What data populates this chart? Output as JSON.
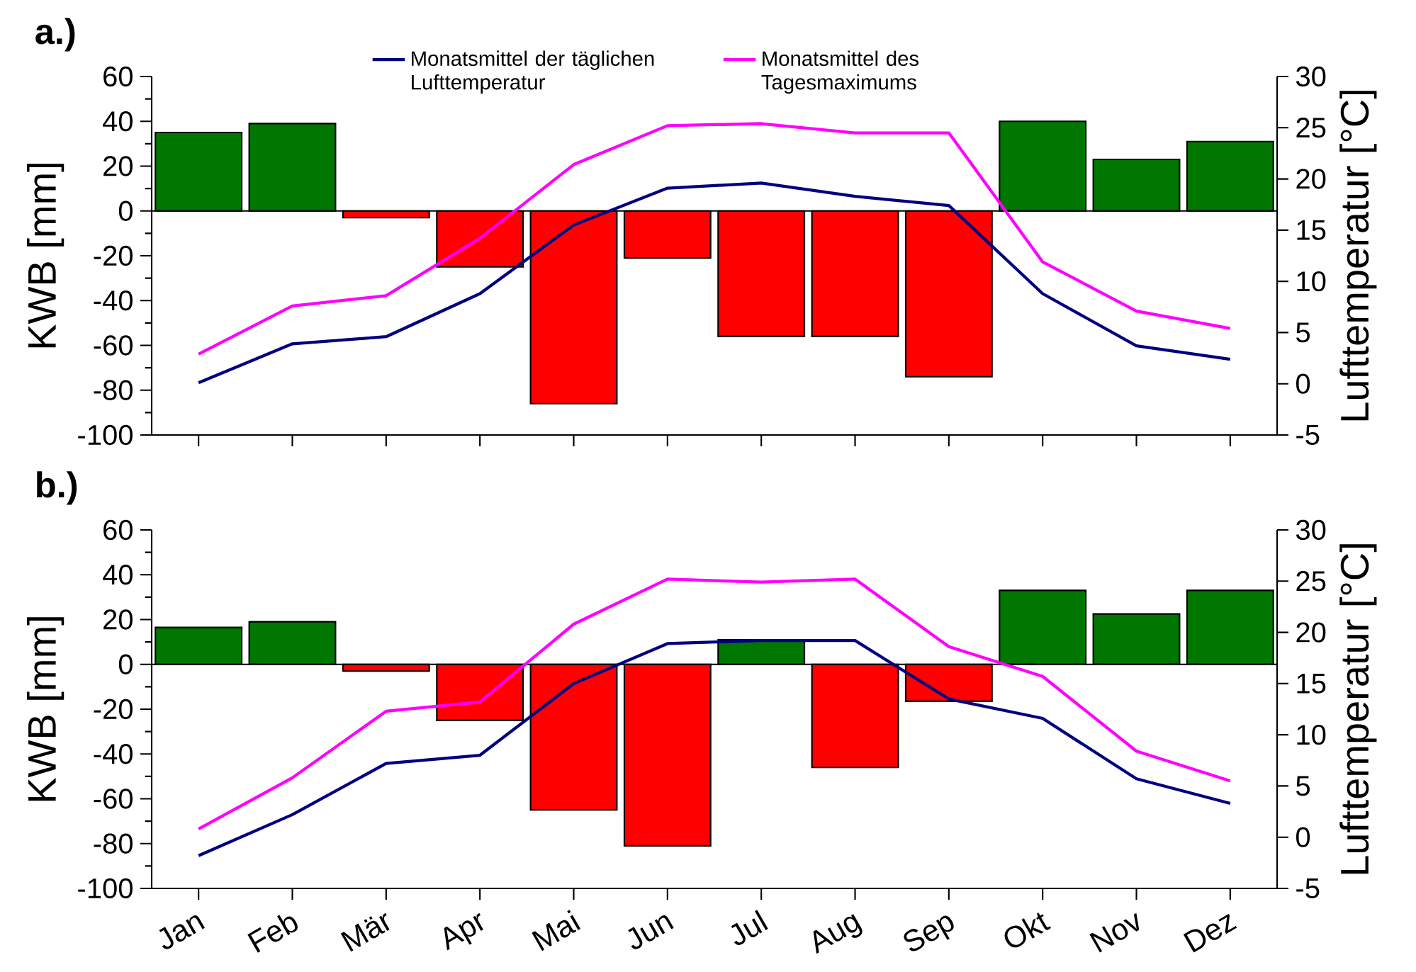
{
  "chart_data": [
    {
      "type": "bar",
      "title": "a.)",
      "categories": [
        null,
        null,
        null,
        null,
        null,
        null,
        null,
        null,
        null,
        null,
        null,
        null
      ],
      "ylabel": "KWB [mm]",
      "y2label": "Lufttemperatur [°C]",
      "ylim": [
        -100,
        60
      ],
      "yticks": [
        -100,
        -80,
        -60,
        -40,
        -20,
        0,
        20,
        40,
        60
      ],
      "y2lim": [
        -5,
        30
      ],
      "y2ticks": [
        -5,
        0,
        5,
        10,
        15,
        20,
        25,
        30
      ],
      "tick_labels": "y",
      "legend": "top",
      "ref_lines": [
        {
          "axis": "y",
          "value": 0,
          "color": "#000000"
        }
      ],
      "series": [
        {
          "type": "bar",
          "colors": [
            "#007700",
            "#007700",
            "#ff0000",
            "#ff0000",
            "#ff0000",
            "#ff0000",
            "#ff0000",
            "#ff0000",
            "#ff0000",
            "#007700",
            "#007700",
            "#007700"
          ],
          "values": [
            35,
            39,
            -3,
            -25,
            -86,
            -21,
            -56,
            -56,
            -74,
            40,
            23,
            31
          ]
        },
        {
          "type": "line",
          "axis": "y2",
          "name": "Monatsmittel der täglichen Lufttemperatur",
          "color": "#000080",
          "values": [
            0.1,
            3.9,
            4.6,
            8.8,
            15.5,
            19.1,
            19.6,
            18.3,
            17.4,
            8.8,
            3.7,
            2.4
          ]
        },
        {
          "type": "line",
          "axis": "y2",
          "name": "Monatsmittel des Tagesmaximums",
          "color": "#ff00ff",
          "values": [
            2.9,
            7.6,
            8.6,
            14.2,
            21.4,
            25.2,
            25.4,
            24.5,
            24.5,
            11.9,
            7.1,
            5.4
          ]
        }
      ]
    },
    {
      "type": "bar",
      "title": "b.)",
      "categories": [
        "Jan",
        "Feb",
        "Mär",
        "Apr",
        "Mai",
        "Jun",
        "Jul",
        "Aug",
        "Sep",
        "Okt",
        "Nov",
        "Dez"
      ],
      "ylabel": "KWB [mm]",
      "y2label": "Lufttemperatur [°C]",
      "ylim": [
        -100,
        60
      ],
      "yticks": [
        -100,
        -80,
        -60,
        -40,
        -20,
        0,
        20,
        40,
        60
      ],
      "y2lim": [
        -5,
        30
      ],
      "y2ticks": [
        -5,
        0,
        5,
        10,
        15,
        20,
        25,
        30
      ],
      "ref_lines": [
        {
          "axis": "y",
          "value": 0,
          "color": "#000000"
        }
      ],
      "series": [
        {
          "type": "bar",
          "colors": [
            "#007700",
            "#007700",
            "#ff0000",
            "#ff0000",
            "#ff0000",
            "#ff0000",
            "#007700",
            "#ff0000",
            "#ff0000",
            "#007700",
            "#007700",
            "#007700"
          ],
          "values": [
            16.5,
            19,
            -3,
            -25,
            -65,
            -81,
            11,
            -46,
            -16.5,
            33,
            22.5,
            33
          ]
        },
        {
          "type": "line",
          "axis": "y2",
          "color": "#000080",
          "values": [
            -1.8,
            2.2,
            7.2,
            8.0,
            15,
            18.9,
            19.2,
            19.2,
            13.5,
            11.6,
            5.7,
            3.3
          ]
        },
        {
          "type": "line",
          "axis": "y2",
          "color": "#ff00ff",
          "values": [
            0.8,
            5.8,
            12.3,
            13.2,
            20.8,
            25.2,
            24.9,
            25.2,
            18.6,
            15.7,
            8.4,
            5.5
          ]
        }
      ]
    }
  ]
}
